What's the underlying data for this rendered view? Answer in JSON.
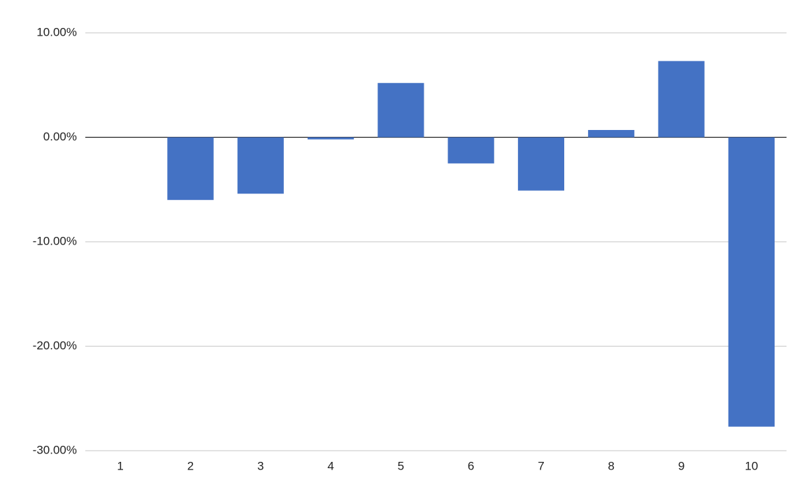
{
  "chart_data": {
    "type": "bar",
    "categories": [
      "1",
      "2",
      "3",
      "4",
      "5",
      "6",
      "7",
      "8",
      "9",
      "10"
    ],
    "values": [
      0,
      -6.0,
      -5.4,
      -0.2,
      5.2,
      -2.5,
      -5.1,
      0.7,
      7.3,
      -27.7
    ],
    "color": "#4472c4",
    "ylim": [
      -30,
      10
    ],
    "yticks": [
      {
        "value": -30,
        "label": "-30.00%"
      },
      {
        "value": -20,
        "label": "-20.00%"
      },
      {
        "value": -10,
        "label": "-10.00%"
      },
      {
        "value": 0,
        "label": "0.00%"
      },
      {
        "value": 10,
        "label": "10.00%"
      }
    ],
    "grid": true
  }
}
